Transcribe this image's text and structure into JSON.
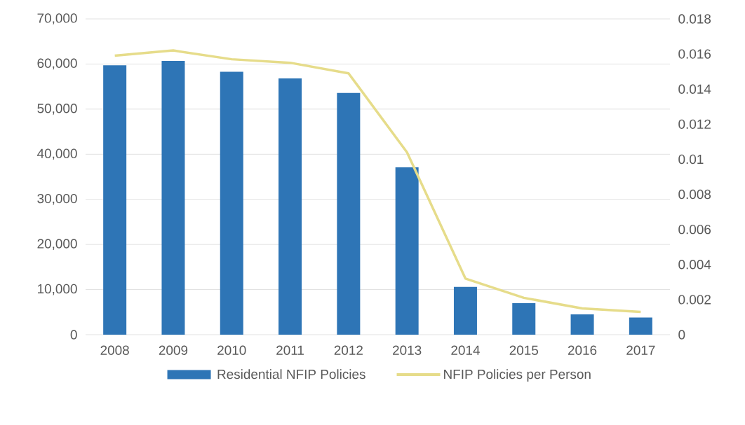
{
  "chart_data": {
    "type": "bar",
    "categories": [
      "2008",
      "2009",
      "2010",
      "2011",
      "2012",
      "2013",
      "2014",
      "2015",
      "2016",
      "2017"
    ],
    "series": [
      {
        "name": "Residential NFIP Policies",
        "axis": "y",
        "color": "#2e75b6",
        "values": [
          59700,
          60700,
          58300,
          56800,
          53600,
          37100,
          10600,
          7000,
          4500,
          3800
        ]
      },
      {
        "name": "NFIP Policies per Person",
        "type": "line",
        "axis": "y2",
        "color": "#e6dc8a",
        "marker": "none",
        "line_style": "solid",
        "values": [
          0.0159,
          0.0162,
          0.0157,
          0.0155,
          0.0149,
          0.0104,
          0.0032,
          0.0021,
          0.0015,
          0.0013
        ]
      }
    ],
    "ylim": [
      0,
      70000
    ],
    "yticks": [
      {
        "value": 0,
        "label": "0"
      },
      {
        "value": 10000,
        "label": "10,000"
      },
      {
        "value": 20000,
        "label": "20,000"
      },
      {
        "value": 30000,
        "label": "30,000"
      },
      {
        "value": 40000,
        "label": "40,000"
      },
      {
        "value": 50000,
        "label": "50,000"
      },
      {
        "value": 60000,
        "label": "60,000"
      },
      {
        "value": 70000,
        "label": "70,000"
      }
    ],
    "y2lim": [
      0,
      0.018
    ],
    "y2ticks": [
      {
        "value": 0,
        "label": "0"
      },
      {
        "value": 0.002,
        "label": "0.002"
      },
      {
        "value": 0.004,
        "label": "0.004"
      },
      {
        "value": 0.006,
        "label": "0.006"
      },
      {
        "value": 0.008,
        "label": "0.008"
      },
      {
        "value": 0.01,
        "label": "0.01"
      },
      {
        "value": 0.012,
        "label": "0.012"
      },
      {
        "value": 0.014,
        "label": "0.014"
      },
      {
        "value": 0.016,
        "label": "0.016"
      },
      {
        "value": 0.018,
        "label": "0.018"
      }
    ],
    "grid": "y",
    "legend": "bottom"
  }
}
